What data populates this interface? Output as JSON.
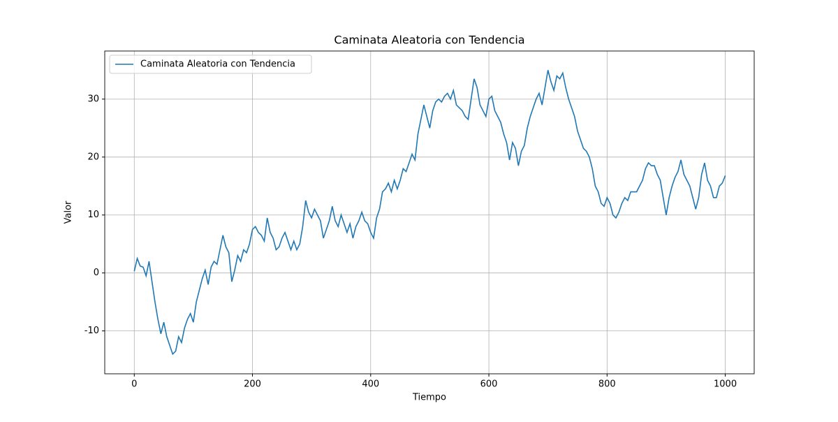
{
  "chart_data": {
    "type": "line",
    "title": "Caminata Aleatoria con Tendencia",
    "xlabel": "Tiempo",
    "ylabel": "Valor",
    "x": [
      0,
      5,
      10,
      15,
      20,
      25,
      30,
      35,
      40,
      45,
      50,
      55,
      60,
      65,
      70,
      75,
      80,
      85,
      90,
      95,
      100,
      105,
      110,
      115,
      120,
      125,
      130,
      135,
      140,
      145,
      150,
      155,
      160,
      165,
      170,
      175,
      180,
      185,
      190,
      195,
      200,
      205,
      210,
      215,
      220,
      225,
      230,
      235,
      240,
      245,
      250,
      255,
      260,
      265,
      270,
      275,
      280,
      285,
      290,
      295,
      300,
      305,
      310,
      315,
      320,
      325,
      330,
      335,
      340,
      345,
      350,
      355,
      360,
      365,
      370,
      375,
      380,
      385,
      390,
      395,
      400,
      405,
      410,
      415,
      420,
      425,
      430,
      435,
      440,
      445,
      450,
      455,
      460,
      465,
      470,
      475,
      480,
      485,
      490,
      495,
      500,
      505,
      510,
      515,
      520,
      525,
      530,
      535,
      540,
      545,
      550,
      555,
      560,
      565,
      570,
      575,
      580,
      585,
      590,
      595,
      600,
      605,
      610,
      615,
      620,
      625,
      630,
      635,
      640,
      645,
      650,
      655,
      660,
      665,
      670,
      675,
      680,
      685,
      690,
      695,
      700,
      705,
      710,
      715,
      720,
      725,
      730,
      735,
      740,
      745,
      750,
      755,
      760,
      765,
      770,
      775,
      780,
      785,
      790,
      795,
      800,
      805,
      810,
      815,
      820,
      825,
      830,
      835,
      840,
      845,
      850,
      855,
      860,
      865,
      870,
      875,
      880,
      885,
      890,
      895,
      900,
      905,
      910,
      915,
      920,
      925,
      930,
      935,
      940,
      945,
      950,
      955,
      960,
      965,
      970,
      975,
      980,
      985,
      990,
      995,
      1000
    ],
    "series": [
      {
        "name": "Caminata Aleatoria con Tendencia",
        "color": "#1f77b4",
        "values": [
          0.3,
          2.5,
          1.2,
          1.0,
          -0.5,
          2.0,
          -1.5,
          -5,
          -8,
          -10.5,
          -8.5,
          -11,
          -12.5,
          -14,
          -13.5,
          -11,
          -12,
          -9.5,
          -8,
          -7,
          -8.5,
          -5,
          -3,
          -1,
          0.5,
          -2,
          1,
          2,
          1.5,
          4,
          6.5,
          4.5,
          3.5,
          -1.5,
          0.5,
          3,
          2,
          4,
          3.5,
          5,
          7.5,
          8,
          7,
          6.5,
          5.5,
          9.5,
          7,
          6,
          4,
          4.5,
          6,
          7,
          5.5,
          4,
          5.5,
          4,
          5,
          8,
          12.5,
          10.5,
          9.5,
          11,
          10,
          9,
          6,
          7.5,
          9,
          11.5,
          9,
          8,
          10,
          8.5,
          7,
          8.5,
          6,
          8,
          9,
          10.5,
          9,
          8.5,
          7,
          6,
          9.5,
          11,
          14,
          14.5,
          15.5,
          14,
          16,
          14.5,
          16,
          18,
          17.5,
          19,
          20.5,
          19.5,
          24,
          26.5,
          29,
          27,
          25,
          28,
          29.5,
          30,
          29.5,
          30.5,
          31,
          30,
          31.5,
          29,
          28.5,
          28,
          27,
          26.5,
          30,
          33.5,
          32,
          29,
          28,
          27,
          30,
          30.5,
          28,
          27,
          26,
          24,
          22.5,
          19.5,
          22.5,
          21.5,
          18.5,
          21,
          22,
          25,
          27,
          28.5,
          30,
          31,
          29,
          32,
          35,
          33,
          31.5,
          34,
          33.5,
          34.5,
          32,
          30,
          28.5,
          27,
          24.5,
          23,
          21.5,
          21,
          20,
          18,
          15,
          14,
          12,
          11.5,
          13,
          12,
          10,
          9.5,
          10.5,
          12,
          13,
          12.5,
          14,
          14,
          14,
          15,
          16,
          18,
          19,
          18.5,
          18.5,
          17,
          16,
          13,
          10,
          13,
          15,
          16.5,
          17.5,
          19.5,
          17,
          16,
          15,
          13,
          11,
          13,
          17,
          19,
          16,
          15,
          13,
          13,
          15,
          15.5,
          16.8
        ]
      }
    ],
    "xlim": [
      -49.95,
      1048.95
    ],
    "xticks": [
      0,
      200,
      400,
      600,
      800,
      1000
    ],
    "ylim": [
      -17.4,
      38.3
    ],
    "yticks": [
      -10,
      0,
      10,
      20,
      30
    ],
    "grid": true,
    "legend": "upper left"
  }
}
